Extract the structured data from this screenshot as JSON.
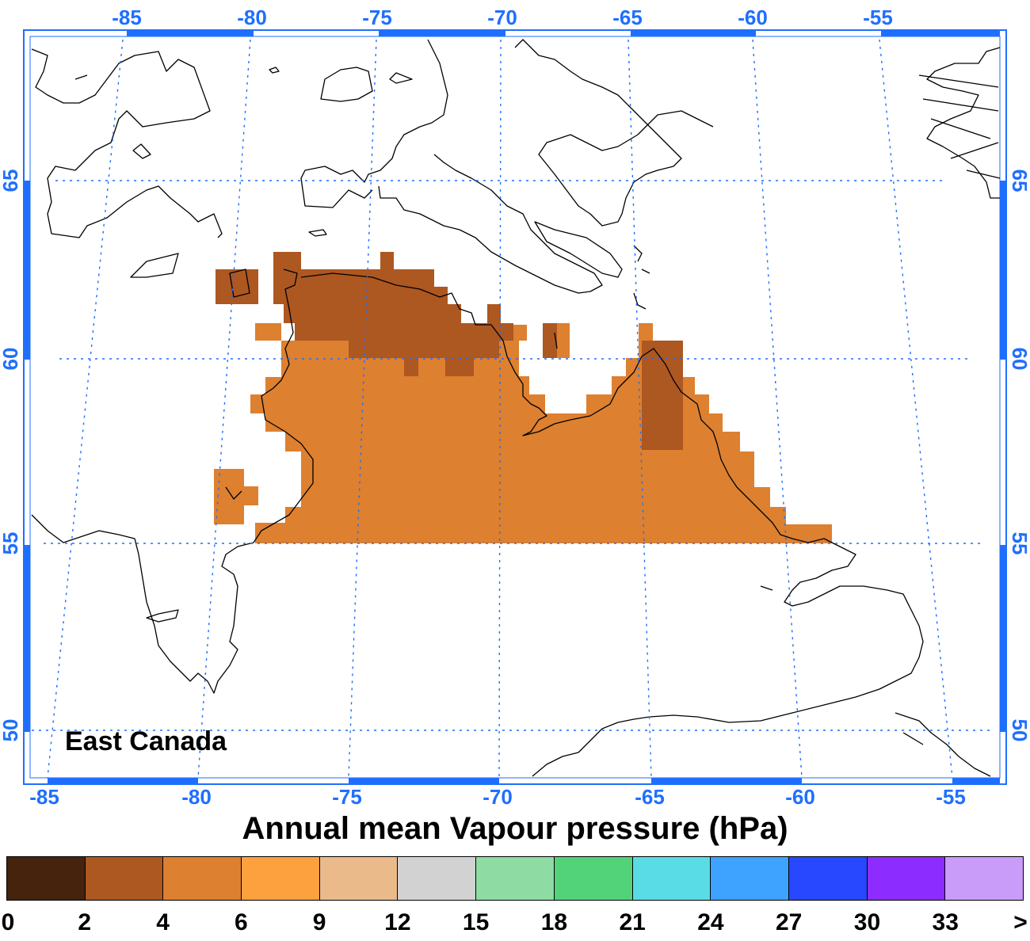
{
  "map": {
    "region_name": "East Canada",
    "top_lon_labels": [
      "-85",
      "-80",
      "-75",
      "-70",
      "-65",
      "-60",
      "-55"
    ],
    "bottom_lon_labels": [
      "-85",
      "-80",
      "-75",
      "-70",
      "-65",
      "-60",
      "-55"
    ],
    "left_lat_labels": [
      "65",
      "60",
      "55",
      "50"
    ],
    "right_lat_labels": [
      "65",
      "60",
      "55",
      "50"
    ],
    "frame_color": "#1f6fff",
    "grid_color": "#1f6fff",
    "coast_color": "#000000",
    "field_classes": [
      {
        "range": "2-4",
        "color": "#ad5721"
      },
      {
        "range": "4-6",
        "color": "#dd8030"
      }
    ]
  },
  "title": "Annual mean Vapour pressure (hPa)",
  "legend": {
    "colors": [
      "#45230d",
      "#ad5721",
      "#dd8030",
      "#fca13e",
      "#ebba8a",
      "#d2d2d2",
      "#8edba3",
      "#52d37a",
      "#5adce6",
      "#3ea2ff",
      "#2848ff",
      "#8d2cff",
      "#c99cf9"
    ],
    "ticks": [
      "0",
      "2",
      "4",
      "6",
      "9",
      "12",
      "15",
      "18",
      "21",
      "24",
      "27",
      "30",
      "33",
      ">"
    ]
  }
}
